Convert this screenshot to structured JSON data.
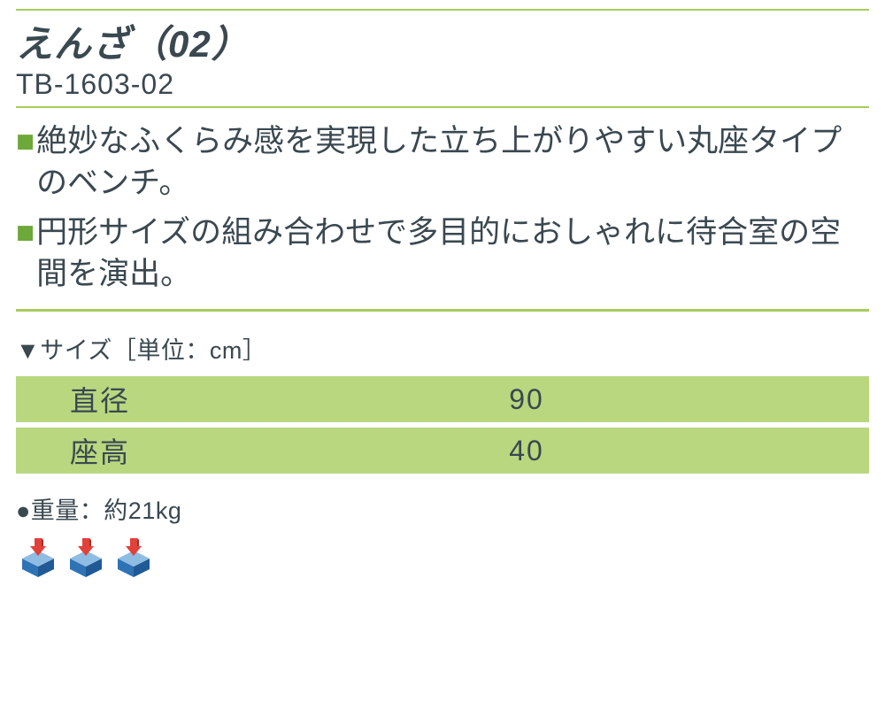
{
  "colors": {
    "rule": "#a8cc5b",
    "bullet_marker": "#6da83a",
    "table_row_bg": "#b8d77f",
    "text": "#3a4850",
    "box_top": "#8fbce3",
    "box_left": "#2e74b5",
    "box_right": "#1f5a96",
    "arrow": "#e2413a",
    "arrow_shadow": "#a52c28"
  },
  "header": {
    "title": "えんざ（02）",
    "model": "TB-1603-02"
  },
  "bullets": [
    "絶妙なふくらみ感を実現した立ち上がりやすい丸座タイプのベンチ。",
    "円形サイズの組み合わせで多目的におしゃれに待合室の空間を演出。"
  ],
  "size": {
    "header": "▼サイズ［単位：cm］",
    "rows": [
      {
        "label": "直径",
        "value": "90"
      },
      {
        "label": "座高",
        "value": "40"
      }
    ]
  },
  "weight": "●重量：約21kg",
  "icon_count": 3
}
